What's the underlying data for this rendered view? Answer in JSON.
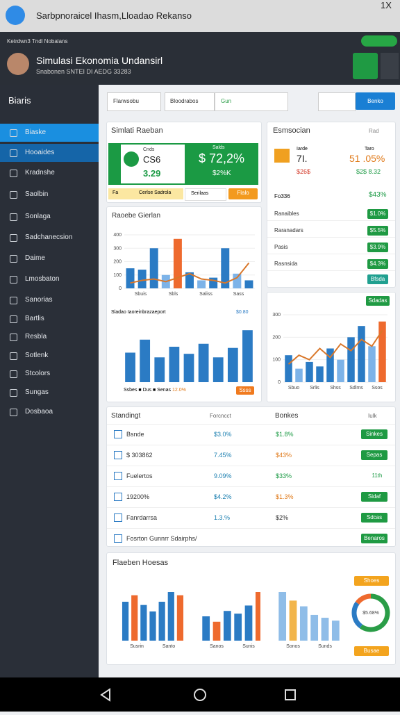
{
  "status_bar": {
    "title": "Sarbpnoraicel Ihasm,Lloadao Rekanso",
    "right": "1X"
  },
  "top_bar": {
    "caption": "Ketrdwn3 Tndl Nobalans"
  },
  "header": {
    "title": "Simulasi Ekonomia Undansirl",
    "subtitle": "Snabonen   SNTEI DI AEDG 33283"
  },
  "sidebar": {
    "title": "Biaris",
    "items": [
      "Biaske",
      "Hooaides",
      "Kradnshe",
      "Saolbin",
      "Sonlaga",
      "Sadchanecsion",
      "Daime",
      "Lmosbaton",
      "Sanorias",
      "Bartlis",
      "Resbla",
      "Sotlenk",
      "Stcolors",
      "Sungas",
      "Dosbaoa"
    ]
  },
  "filters": {
    "select1": "Flarwsobu",
    "select2": "Bloodrabos",
    "search": "Gun",
    "button": "Benko"
  },
  "summary": {
    "title": "Simlati Raeban",
    "card_label": "Cnds",
    "card_value": "CS6",
    "card_value2": "3.29",
    "big_label": "Salds",
    "big_value": "$ 72,2%",
    "big_sub": "$2%K",
    "chips": [
      "Fa",
      "Cerlse Sadrola",
      "Serilaas",
      "Flalo"
    ]
  },
  "panel": {
    "title": "Esmsocian",
    "link": "Rad",
    "left_label": "Iarde",
    "left_value": "7I.",
    "left_sub": "$26$",
    "right_label": "Taro",
    "right_value": "51 .05%",
    "right_sub": "$2$ 8.32",
    "total_label": "Fo336",
    "total_value": "$43%",
    "rows": [
      {
        "label": "Ranaibles",
        "value": "$1.0%"
      },
      {
        "label": "Raranadars",
        "value": "$5.5%"
      },
      {
        "label": "Pasis",
        "value": "$3.9%"
      },
      {
        "label": "Rasnsida",
        "value": "$4.3%"
      }
    ],
    "button": "Bfsda"
  },
  "charts": [
    {
      "title": "Raoebe Gierlan",
      "ylim": [
        0,
        400
      ],
      "yticks": [
        0,
        100,
        200,
        300,
        400
      ],
      "categories": [
        "Sbuis",
        "Sbls",
        "Saliss",
        "Sass"
      ],
      "values": [
        150,
        140,
        300,
        100,
        370,
        120,
        60,
        80,
        300,
        110,
        60
      ],
      "colors": [
        "#2b7bc4",
        "#2b7bc4",
        "#2b7bc4",
        "#7db3e8",
        "#ee6a2e",
        "#2b7bc4",
        "#7db3e8",
        "#2b7bc4",
        "#2b7bc4",
        "#7db3e8",
        "#2b7bc4"
      ],
      "line": [
        40,
        60,
        70,
        50,
        80,
        110,
        70,
        60,
        40,
        80,
        190
      ],
      "line_color": "#d9772a"
    },
    {
      "title": "Sladao Iaoreinbrazaeport",
      "value_label": "$0.80",
      "legend": [
        "Ssbes",
        "Dus",
        "Senas",
        "12.0%"
      ],
      "chip": "Ssss",
      "ylim": [
        0,
        100
      ],
      "values": [
        50,
        72,
        42,
        60,
        48,
        65,
        42,
        58,
        88
      ],
      "colors": [
        "#2b7bc4",
        "#2b7bc4",
        "#2b7bc4",
        "#2b7bc4",
        "#2b7bc4",
        "#2b7bc4",
        "#2b7bc4",
        "#2b7bc4",
        "#2b7bc4"
      ]
    },
    {
      "button": "Sdadas",
      "ylim": [
        0,
        300
      ],
      "yticks": [
        0,
        100,
        200,
        300
      ],
      "categories": [
        "Sbuo",
        "Srlis",
        "Shss",
        "Sdlms",
        "Ssos"
      ],
      "values": [
        120,
        60,
        90,
        70,
        150,
        100,
        200,
        250,
        160,
        270
      ],
      "colors": [
        "#2b7bc4",
        "#7db3e8",
        "#2b7bc4",
        "#2b7bc4",
        "#2b7bc4",
        "#7db3e8",
        "#2b7bc4",
        "#2b7bc4",
        "#7db3e8",
        "#ee6a2e"
      ],
      "line": [
        80,
        120,
        100,
        150,
        110,
        170,
        140,
        190,
        160,
        230
      ],
      "line_color": "#d9772a"
    }
  ],
  "table": {
    "title": "Standingt",
    "filter": "Forcncct",
    "title2": "Bonkes",
    "filter2": "Iulk",
    "rows": [
      [
        "Bsnde",
        "$3.0%",
        "$1.8%",
        "Sinkes"
      ],
      [
        "$ 303862",
        "7.45%",
        "$43%",
        "Sepas"
      ],
      [
        "Fuelertos",
        "9.09%",
        "$33%",
        "11th"
      ],
      [
        "19200%",
        "$4.2%",
        "$1.3%",
        "Sidaf"
      ],
      [
        "Fanrdarrsa",
        "1.3.%",
        "$2%",
        "Sdcas"
      ],
      [
        "Fosrton Gunnrr Sdairphs/",
        "Benaros"
      ]
    ]
  },
  "bottom": {
    "title": "Flaeben Hoesas",
    "charts": [
      {
        "categories": [
          "Susrin",
          "Santo"
        ],
        "values": [
          60,
          70,
          55,
          45,
          60,
          75,
          70
        ],
        "colors": [
          "#2b7bc4",
          "#ee6a2e",
          "#2b7bc4",
          "#2b7bc4",
          "#2b7bc4",
          "#2b7bc4",
          "#ee6a2e"
        ]
      },
      {
        "categories": [
          "Sanos",
          "Sunis"
        ],
        "values": [
          45,
          35,
          55,
          50,
          65,
          90
        ],
        "colors": [
          "#2b7bc4",
          "#ee6a2e",
          "#2b7bc4",
          "#2b7bc4",
          "#2b7bc4",
          "#ee6a2e"
        ]
      },
      {
        "categories": [
          "Sonos",
          "Sunds"
        ],
        "values": [
          85,
          70,
          60,
          45,
          40,
          35
        ],
        "colors": [
          "#8fbde8",
          "#f2b54a",
          "#8fbde8",
          "#8fbde8",
          "#8fbde8",
          "#8fbde8"
        ]
      }
    ],
    "donut": {
      "values": [
        60,
        25,
        15
      ],
      "colors": [
        "#2a9d47",
        "#2b7bc4",
        "#ee6a2e"
      ],
      "label": "$5.68%"
    },
    "button1": "Shoes",
    "button2": "Busae"
  }
}
